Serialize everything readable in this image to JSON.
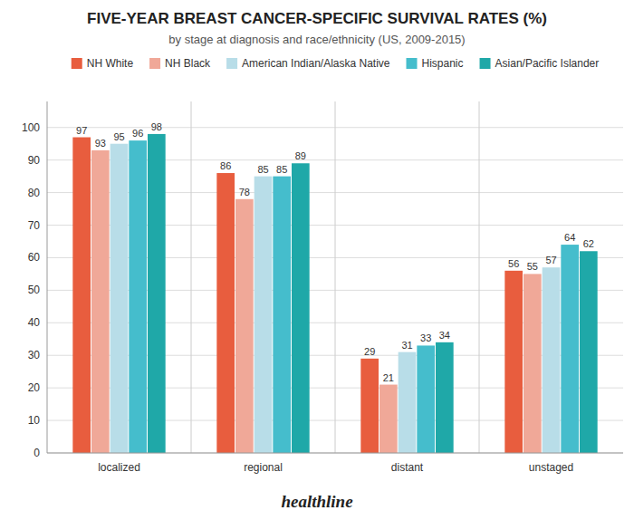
{
  "chart_data": {
    "type": "bar",
    "title": "FIVE-YEAR BREAST CANCER-SPECIFIC SURVIVAL RATES (%)",
    "subtitle": "by stage at diagnosis and race/ethnicity (US, 2009-2015)",
    "annotations": [
      "healthline"
    ],
    "categories": [
      "localized",
      "regional",
      "distant",
      "unstaged"
    ],
    "series": [
      {
        "name": "NH White",
        "color": "#E85D3E",
        "values": [
          97,
          86,
          29,
          56
        ]
      },
      {
        "name": "NH Black",
        "color": "#F0A898",
        "values": [
          93,
          78,
          21,
          55
        ]
      },
      {
        "name": "American Indian/Alaska Native",
        "color": "#B8DDE8",
        "values": [
          95,
          85,
          31,
          57
        ]
      },
      {
        "name": "Hispanic",
        "color": "#45BDCC",
        "values": [
          96,
          85,
          33,
          64
        ]
      },
      {
        "name": "Asian/Pacific Islander",
        "color": "#1FA8A8",
        "values": [
          98,
          89,
          34,
          62
        ]
      }
    ],
    "ylim": [
      0,
      108
    ],
    "yticks": [
      0,
      10,
      20,
      30,
      40,
      50,
      60,
      70,
      80,
      90,
      100
    ],
    "grid": true,
    "legend": "top",
    "data_labels": true
  }
}
